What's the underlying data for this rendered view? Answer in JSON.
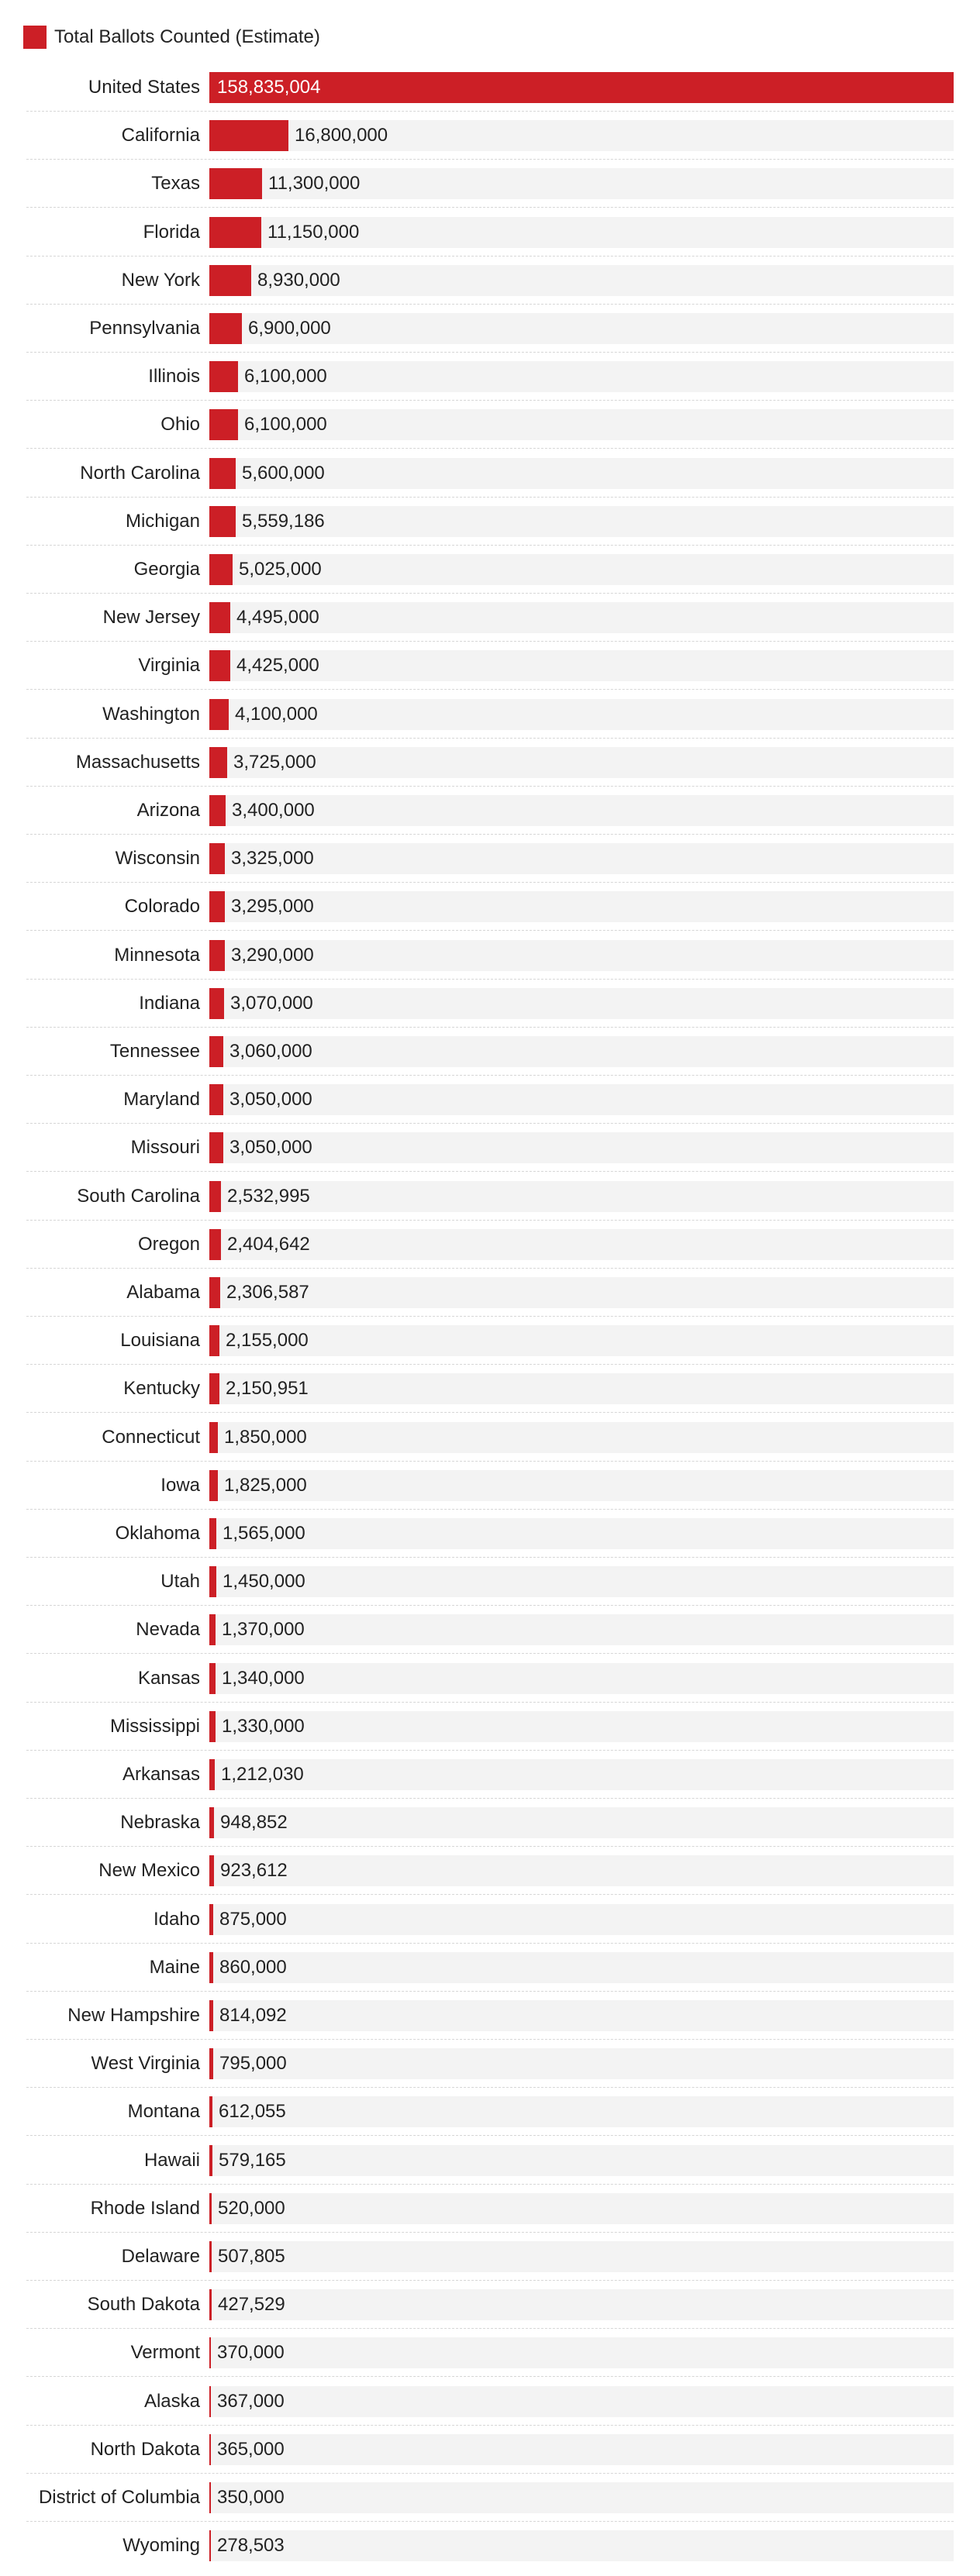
{
  "chart_data": {
    "type": "bar",
    "orientation": "horizontal",
    "title": "",
    "xlabel": "",
    "ylabel": "",
    "legend": {
      "position": "top-left",
      "entries": [
        "Total Ballots Counted (Estimate)"
      ]
    },
    "grid": false,
    "xlim": [
      0,
      158835004
    ],
    "colors": {
      "bar": "#cc1f26",
      "track": "#f3f3f3",
      "label_inside": "#ffffff",
      "label_outside": "#222222"
    },
    "categories": [
      "United States",
      "California",
      "Texas",
      "Florida",
      "New York",
      "Pennsylvania",
      "Illinois",
      "Ohio",
      "North Carolina",
      "Michigan",
      "Georgia",
      "New Jersey",
      "Virginia",
      "Washington",
      "Massachusetts",
      "Arizona",
      "Wisconsin",
      "Colorado",
      "Minnesota",
      "Indiana",
      "Tennessee",
      "Maryland",
      "Missouri",
      "South Carolina",
      "Oregon",
      "Alabama",
      "Louisiana",
      "Kentucky",
      "Connecticut",
      "Iowa",
      "Oklahoma",
      "Utah",
      "Nevada",
      "Kansas",
      "Mississippi",
      "Arkansas",
      "Nebraska",
      "New Mexico",
      "Idaho",
      "Maine",
      "New Hampshire",
      "West Virginia",
      "Montana",
      "Hawaii",
      "Rhode Island",
      "Delaware",
      "South Dakota",
      "Vermont",
      "Alaska",
      "North Dakota",
      "District of Columbia",
      "Wyoming"
    ],
    "series": [
      {
        "name": "Total Ballots Counted (Estimate)",
        "values": [
          158835004,
          16800000,
          11300000,
          11150000,
          8930000,
          6900000,
          6100000,
          6100000,
          5600000,
          5559186,
          5025000,
          4495000,
          4425000,
          4100000,
          3725000,
          3400000,
          3325000,
          3295000,
          3290000,
          3070000,
          3060000,
          3050000,
          3050000,
          2532995,
          2404642,
          2306587,
          2155000,
          2150951,
          1850000,
          1825000,
          1565000,
          1450000,
          1370000,
          1340000,
          1330000,
          1212030,
          948852,
          923612,
          875000,
          860000,
          814092,
          795000,
          612055,
          579165,
          520000,
          507805,
          427529,
          370000,
          367000,
          365000,
          350000,
          278503
        ]
      }
    ]
  }
}
